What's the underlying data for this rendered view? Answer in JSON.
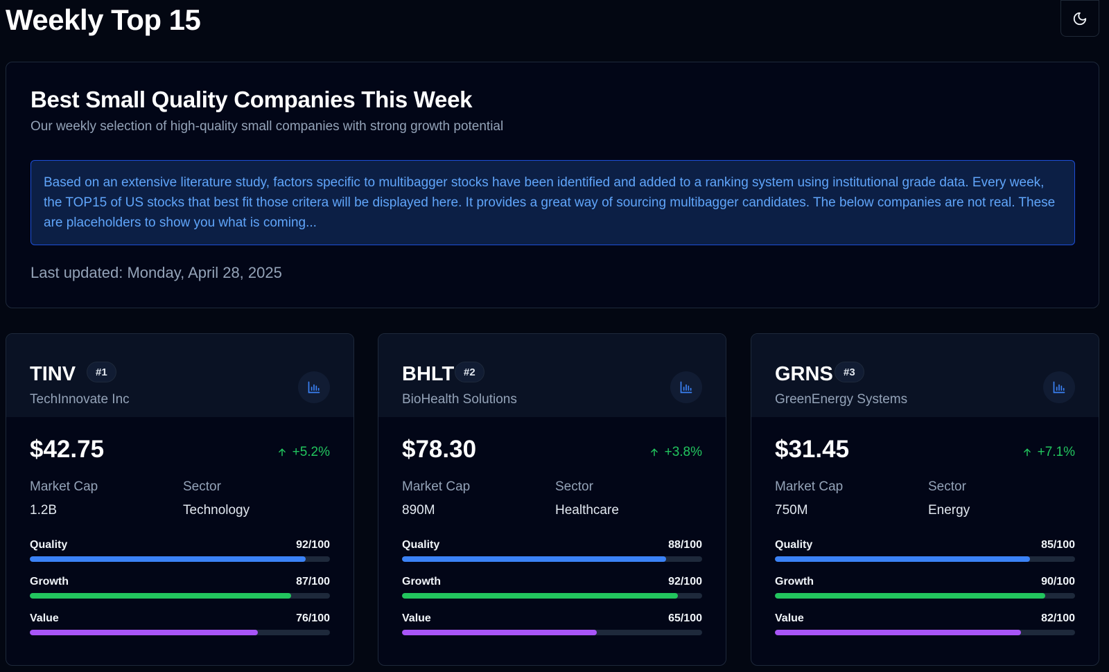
{
  "header": {
    "title": "Weekly Top 15",
    "theme_icon": "moon-icon"
  },
  "intro": {
    "heading": "Best Small Quality Companies This Week",
    "subheading": "Our weekly selection of high-quality small companies with strong growth potential",
    "notice": "Based on an extensive literature study, factors specific to multibagger stocks have been identified and added to a ranking system using institutional grade data. Every week, the TOP15 of US stocks that best fit those critera will be displayed here. It provides a great way of sourcing multibagger candidates. The below companies are not real. These are placeholders to show you what is coming...",
    "last_updated": "Last updated: Monday, April 28, 2025"
  },
  "labels": {
    "market_cap": "Market Cap",
    "sector": "Sector",
    "quality": "Quality",
    "growth": "Growth",
    "value": "Value"
  },
  "colors": {
    "quality": "#3b82f6",
    "growth": "#22c55e",
    "value": "#a855f7",
    "positive_change": "#22c55e"
  },
  "stocks": [
    {
      "ticker": "TINV",
      "rank": "#1",
      "company": "TechInnovate Inc",
      "price": "$42.75",
      "change": "+5.2%",
      "market_cap": "1.2B",
      "sector": "Technology",
      "quality_text": "92/100",
      "quality": 92,
      "growth_text": "87/100",
      "growth": 87,
      "value_text": "76/100",
      "value": 76
    },
    {
      "ticker": "BHLT",
      "rank": "#2",
      "company": "BioHealth Solutions",
      "price": "$78.30",
      "change": "+3.8%",
      "market_cap": "890M",
      "sector": "Healthcare",
      "quality_text": "88/100",
      "quality": 88,
      "growth_text": "92/100",
      "growth": 92,
      "value_text": "65/100",
      "value": 65
    },
    {
      "ticker": "GRNS",
      "rank": "#3",
      "company": "GreenEnergy Systems",
      "price": "$31.45",
      "change": "+7.1%",
      "market_cap": "750M",
      "sector": "Energy",
      "quality_text": "85/100",
      "quality": 85,
      "growth_text": "90/100",
      "growth": 90,
      "value_text": "82/100",
      "value": 82
    }
  ]
}
